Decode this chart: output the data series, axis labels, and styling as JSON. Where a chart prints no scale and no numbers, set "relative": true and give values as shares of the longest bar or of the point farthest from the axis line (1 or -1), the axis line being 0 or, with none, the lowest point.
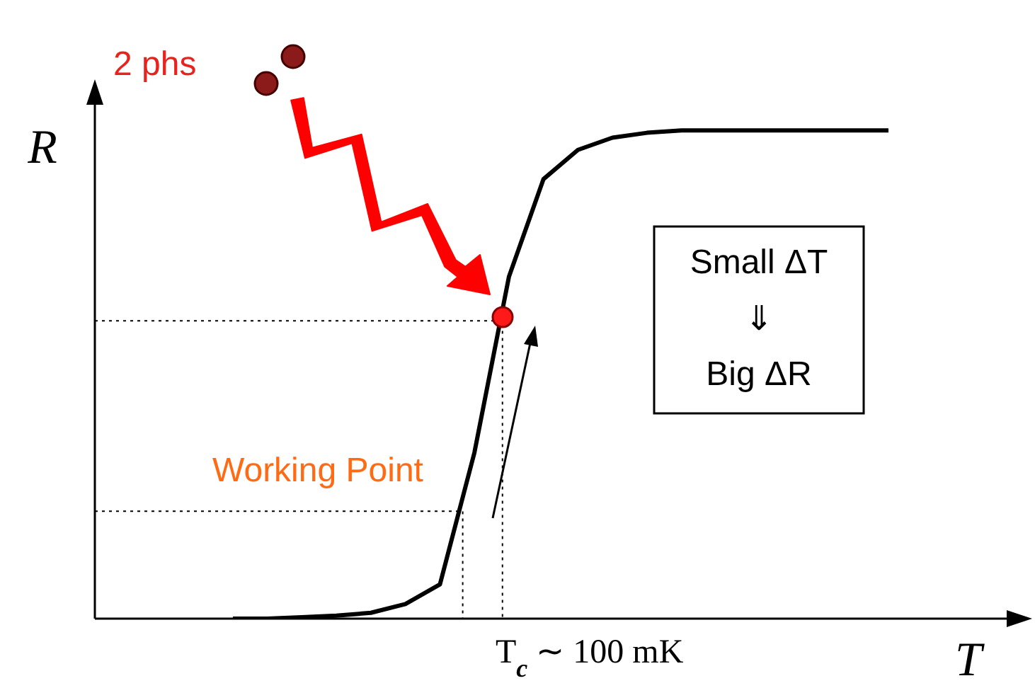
{
  "chart_data": {
    "type": "line",
    "relative": true,
    "xlabel": "T",
    "ylabel": "R",
    "categories": [
      null,
      null,
      null,
      null,
      null,
      null,
      null,
      null,
      null,
      null,
      null,
      null,
      null,
      null,
      null,
      null,
      null,
      null,
      null,
      null,
      null,
      null,
      null,
      null,
      null,
      null,
      null,
      null
    ],
    "series": [
      {
        "color": "#000000",
        "values": [
          null,
          null,
          null,
          null,
          0,
          0,
          0.003,
          0.006,
          0.012,
          0.03,
          0.07,
          0.34,
          0.7,
          0.9,
          0.96,
          0.985,
          0.995,
          1,
          1,
          1,
          1,
          1,
          1,
          1,
          null,
          null,
          null,
          null
        ]
      }
    ],
    "ref_lines": [
      {
        "axis": "y",
        "value": 0.61,
        "color": "#000000",
        "line_style": "dotted"
      },
      {
        "axis": "y",
        "value": 0.22,
        "color": "#000000",
        "line_style": "dotted"
      }
    ],
    "annotations": [
      "2 phs",
      "Working Point",
      "Small ΔT",
      "⇓",
      "Big ΔR",
      "T$_{c}$ ∼ 100 mK"
    ]
  }
}
